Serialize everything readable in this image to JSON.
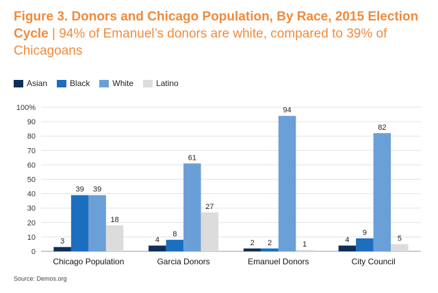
{
  "figure": {
    "title": "Figure 3. Donors and Chicago Population, By Race, 2015 Election Cycle",
    "separator": "|",
    "subtitle": "94% of Emanuel’s donors are white, compared to 39% of Chicagoans",
    "source": "Source: Demos.org"
  },
  "chart_data": {
    "type": "bar",
    "title": "Figure 3. Donors and Chicago Population, By Race, 2015 Election Cycle",
    "subtitle": "94% of Emanuel’s donors are white, compared to 39% of Chicagoans",
    "categories": [
      "Chicago Population",
      "Garcia Donors",
      "Emanuel Donors",
      "City Council"
    ],
    "series": [
      {
        "name": "Asian",
        "color": "#0d2f5a",
        "values": [
          3,
          4,
          2,
          4
        ]
      },
      {
        "name": "Black",
        "color": "#1c6fbf",
        "values": [
          39,
          8,
          2,
          9
        ]
      },
      {
        "name": "White",
        "color": "#6b9fd8",
        "values": [
          39,
          61,
          94,
          82
        ]
      },
      {
        "name": "Latino",
        "color": "#dcdcdc",
        "values": [
          18,
          27,
          1,
          5
        ]
      }
    ],
    "yticks": [
      "0",
      "10",
      "20",
      "30",
      "40",
      "50",
      "60",
      "70",
      "80",
      "90",
      "100%"
    ],
    "ylim": [
      0,
      100
    ],
    "xlabel": "",
    "ylabel": "",
    "legend_position": "top-left",
    "grid": true,
    "data_labels": true,
    "source": "Source: Demos.org"
  }
}
